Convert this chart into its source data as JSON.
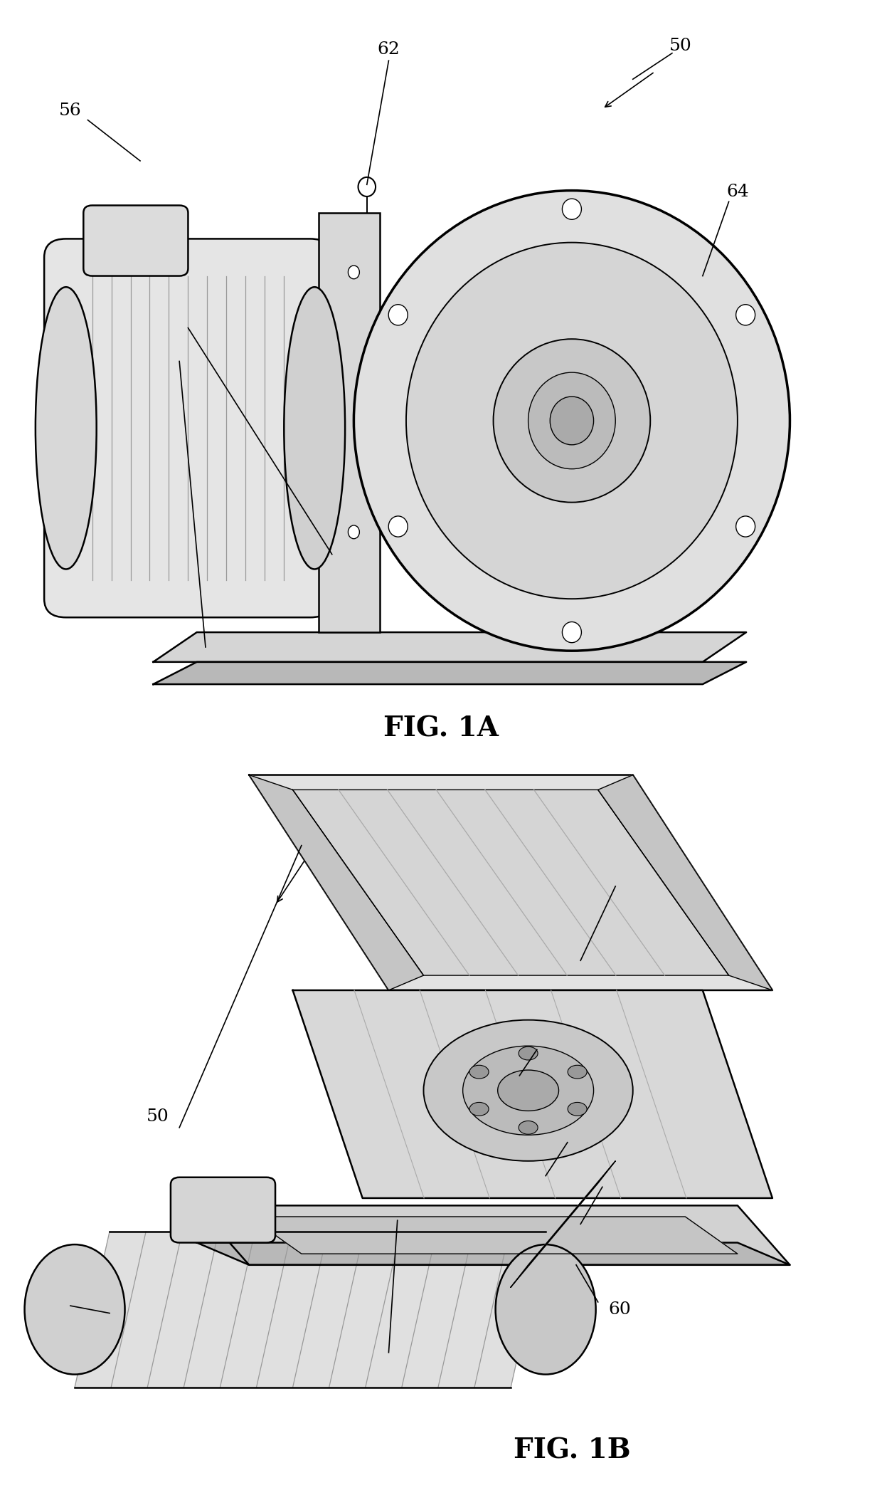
{
  "bg_color": "#ffffff",
  "line_color": "#000000",
  "label_fontsize": 18,
  "caption_fontsize": 28,
  "fig1a_caption": "FIG. 1A",
  "fig1b_caption": "FIG. 1B"
}
